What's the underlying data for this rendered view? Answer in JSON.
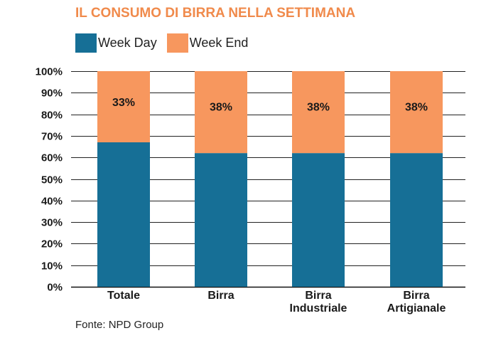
{
  "chart_data": {
    "type": "bar",
    "stacked": true,
    "title": "IL CONSUMO DI BIRRA NELLA SETTIMANA",
    "categories": [
      [
        "Totale"
      ],
      [
        "Birra"
      ],
      [
        "Birra",
        "Industriale"
      ],
      [
        "Birra",
        "Artigianale"
      ]
    ],
    "series": [
      {
        "name": "Week Day",
        "color": "#166f96",
        "values": [
          67,
          62,
          62,
          62
        ]
      },
      {
        "name": "Week End",
        "color": "#f7975e",
        "values": [
          33,
          38,
          38,
          38
        ]
      }
    ],
    "data_labels": [
      "33%",
      "38%",
      "38%",
      "38%"
    ],
    "yticks": [
      "0%",
      "10%",
      "20%",
      "30%",
      "40%",
      "50%",
      "60%",
      "70%",
      "80%",
      "90%",
      "100%"
    ],
    "ylim": [
      0,
      100
    ],
    "xlabel": "",
    "ylabel": "",
    "grid": true,
    "legend_position": "top-left"
  },
  "source": "Fonte: NPD Group"
}
